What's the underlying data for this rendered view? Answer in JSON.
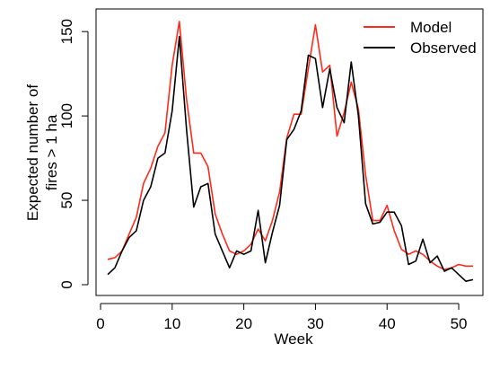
{
  "chart_data": {
    "type": "line",
    "xlabel": "Week",
    "ylabel_line1": "Expected number of",
    "ylabel_line2": "fires > 1 ha",
    "xlim": [
      1,
      52
    ],
    "ylim": [
      0,
      157
    ],
    "xticks": [
      0,
      10,
      20,
      30,
      40,
      50
    ],
    "yticks": [
      0,
      50,
      100,
      150
    ],
    "grid": false,
    "legend": "top-right",
    "x": [
      1,
      2,
      3,
      4,
      5,
      6,
      7,
      8,
      9,
      10,
      11,
      12,
      13,
      14,
      15,
      16,
      17,
      18,
      19,
      20,
      21,
      22,
      23,
      24,
      25,
      26,
      27,
      28,
      29,
      30,
      31,
      32,
      33,
      34,
      35,
      36,
      37,
      38,
      39,
      40,
      41,
      42,
      43,
      44,
      45,
      46,
      47,
      48,
      49,
      50,
      51,
      52
    ],
    "series": [
      {
        "name": "Model",
        "color": "#ff2a1a",
        "values": [
          15,
          16,
          20,
          30,
          40,
          60,
          69,
          82,
          90,
          130,
          156,
          110,
          78,
          78,
          70,
          42,
          30,
          20,
          18,
          20,
          24,
          33,
          26,
          38,
          55,
          87,
          101,
          101,
          128,
          154,
          126,
          130,
          88,
          102,
          120,
          104,
          65,
          38,
          38,
          47,
          32,
          21,
          18,
          20,
          18,
          14,
          11,
          9,
          10,
          12,
          11,
          11
        ]
      },
      {
        "name": "Observed",
        "color": "#000000",
        "values": [
          6,
          10,
          20,
          28,
          32,
          50,
          58,
          75,
          78,
          103,
          147,
          92,
          46,
          58,
          60,
          30,
          20,
          10,
          20,
          18,
          20,
          44,
          13,
          31,
          47,
          86,
          92,
          103,
          136,
          134,
          105,
          128,
          105,
          96,
          132,
          100,
          48,
          36,
          37,
          43,
          43,
          35,
          12,
          14,
          27,
          13,
          17,
          8,
          10,
          6,
          2,
          3
        ]
      }
    ]
  }
}
